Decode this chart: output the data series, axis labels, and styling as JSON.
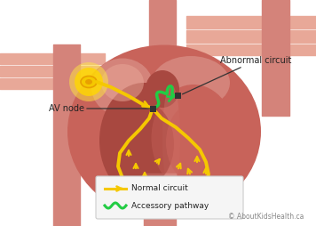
{
  "bg_color": "#ffffff",
  "heart_color": "#c8635a",
  "heart_light": "#d4837a",
  "heart_lighter": "#e8a898",
  "heart_dark": "#a84840",
  "vessel_color": "#d4837a",
  "vessel_pink": "#e8a898",
  "atrium_dark": "#b85050",
  "sa_yellow1": "#FFE840",
  "sa_yellow2": "#F5C800",
  "sa_center": "#E8A000",
  "normal_color": "#F5C800",
  "accessory_color": "#22CC44",
  "node_color": "#333333",
  "label_color": "#222222",
  "arrow_color": "#333333",
  "legend_bg": "#f5f5f5",
  "legend_border": "#cccccc",
  "copyright_color": "#888888",
  "av_node_label": "AV node",
  "abnormal_label": "Abnormal circuit",
  "legend_normal": "Normal circuit",
  "legend_accessory": "Accessory pathway",
  "copyright": "© AboutKidsHealth.ca",
  "figsize": [
    3.56,
    2.54
  ],
  "dpi": 100
}
